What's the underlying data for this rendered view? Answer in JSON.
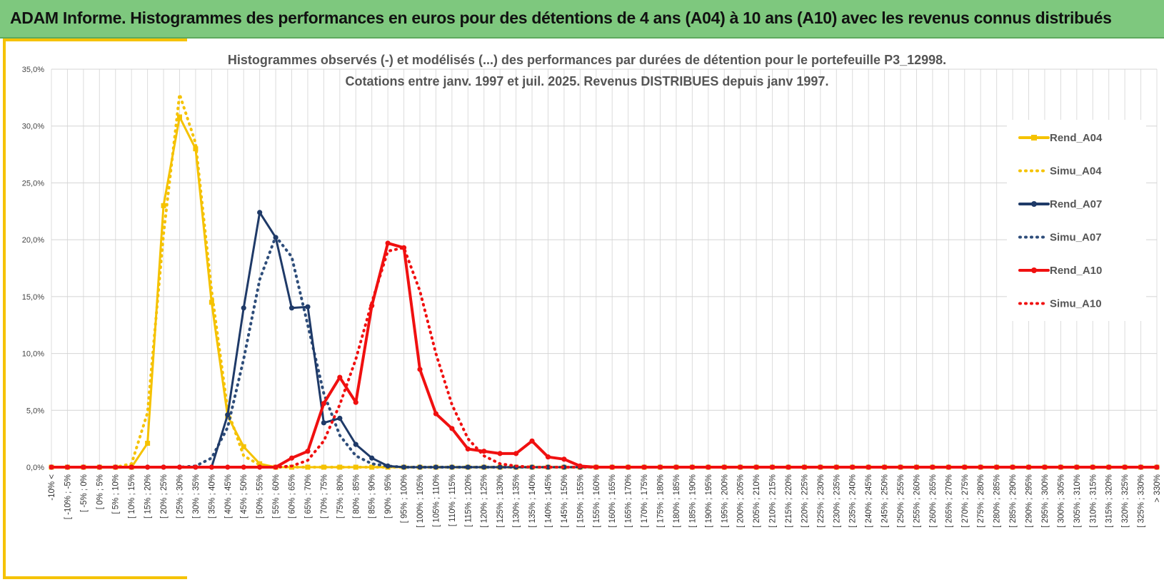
{
  "banner": {
    "title": "ADAM Informe. Histogrammes des performances en euros pour des détentions de 4 ans (A04) à 10 ans (A10) avec les revenus connus distribués"
  },
  "chart_data": {
    "type": "line",
    "title_lines": [
      "Histogrammes observés (-) et modélisés (...) des performances par durées de détention pour le portefeuille P3_12998.",
      "Cotations entre janv. 1997 et juil. 2025. Revenus DISTRIBUES depuis janv 1997."
    ],
    "xlabel": "",
    "ylabel": "",
    "ylim": [
      0,
      35
    ],
    "yticks": [
      "0,0%",
      "5,0%",
      "10,0%",
      "15,0%",
      "20,0%",
      "25,0%",
      "30,0%",
      "35,0%"
    ],
    "grid": true,
    "legend_position": "right",
    "categories": [
      "-10% <",
      "[ -10% ; -5%",
      "[ -5% ; 0%",
      "[ 0% ; 5%",
      "[ 5% ; 10%",
      "[ 10% ; 15%",
      "[ 15% ; 20%",
      "[ 20% ; 25%",
      "[ 25% ; 30%",
      "[ 30% ; 35%",
      "[ 35% ; 40%",
      "[ 40% ; 45%",
      "[ 45% ; 50%",
      "[ 50% ; 55%",
      "[ 55% ; 60%",
      "[ 60% ; 65%",
      "[ 65% ; 70%",
      "[ 70% ; 75%",
      "[ 75% ; 80%",
      "[ 80% ; 85%",
      "[ 85% ; 90%",
      "[ 90% ; 95%",
      "[ 95% ; 100%",
      "[ 100% ; 105%",
      "[ 105% ; 110%",
      "[ 110% ; 115%",
      "[ 115% ; 120%",
      "[ 120% ; 125%",
      "[ 125% ; 130%",
      "[ 130% ; 135%",
      "[ 135% ; 140%",
      "[ 140% ; 145%",
      "[ 145% ; 150%",
      "[ 150% ; 155%",
      "[ 155% ; 160%",
      "[ 160% ; 165%",
      "[ 165% ; 170%",
      "[ 170% ; 175%",
      "[ 175% ; 180%",
      "[ 180% ; 185%",
      "[ 185% ; 190%",
      "[ 190% ; 195%",
      "[ 195% ; 200%",
      "[ 200% ; 205%",
      "[ 205% ; 210%",
      "[ 210% ; 215%",
      "[ 215% ; 220%",
      "[ 220% ; 225%",
      "[ 225% ; 230%",
      "[ 230% ; 235%",
      "[ 235% ; 240%",
      "[ 240% ; 245%",
      "[ 245% ; 250%",
      "[ 250% ; 255%",
      "[ 255% ; 260%",
      "[ 260% ; 265%",
      "[ 265% ; 270%",
      "[ 270% ; 275%",
      "[ 275% ; 280%",
      "[ 280% ; 285%",
      "[ 285% ; 290%",
      "[ 290% ; 295%",
      "[ 295% ; 300%",
      "[ 300% ; 305%",
      "[ 305% ; 310%",
      "[ 310% ; 315%",
      "[ 315% ; 320%",
      "[ 320% ; 325%",
      "[ 325% ; 330%",
      "> 330%"
    ],
    "series": [
      {
        "name": "Rend_A04",
        "color": "#f5c200",
        "style": "solid",
        "marker": "square",
        "values": [
          0,
          0,
          0,
          0,
          0,
          0,
          2.1,
          23.0,
          30.8,
          28.0,
          14.5,
          4.5,
          1.8,
          0.3,
          0,
          0,
          0,
          0,
          0,
          0,
          0,
          0,
          0,
          0,
          0,
          0,
          0,
          0,
          0,
          0,
          0,
          0,
          0,
          0,
          0,
          0,
          0,
          0,
          0,
          0,
          0,
          0,
          0,
          0,
          0,
          0,
          0,
          0,
          0,
          0,
          0,
          0,
          0,
          0,
          0,
          0,
          0,
          0,
          0,
          0,
          0,
          0,
          0,
          0,
          0,
          0,
          0,
          0,
          0,
          0
        ]
      },
      {
        "name": "Simu_A04",
        "color": "#f5c200",
        "style": "dotted",
        "marker": "none",
        "values": [
          0,
          0,
          0,
          0,
          0,
          0.3,
          4.8,
          20.5,
          32.8,
          28.5,
          15.5,
          5.0,
          1.0,
          0.2,
          0,
          0,
          0,
          0,
          0,
          0,
          0,
          0,
          0,
          0,
          0,
          0,
          0,
          0,
          0,
          0,
          0,
          0,
          0,
          0,
          0,
          0,
          0,
          0,
          0,
          0,
          0,
          0,
          0,
          0,
          0,
          0,
          0,
          0,
          0,
          0,
          0,
          0,
          0,
          0,
          0,
          0,
          0,
          0,
          0,
          0,
          0,
          0,
          0,
          0,
          0,
          0,
          0,
          0,
          0,
          0
        ]
      },
      {
        "name": "Rend_A07",
        "color": "#1f3a68",
        "style": "solid",
        "marker": "circle",
        "values": [
          0,
          0,
          0,
          0,
          0,
          0,
          0,
          0,
          0,
          0,
          0,
          4.6,
          14.0,
          22.4,
          20.2,
          14.0,
          14.1,
          3.9,
          4.3,
          2.0,
          0.8,
          0.1,
          0,
          0,
          0,
          0,
          0,
          0,
          0,
          0,
          0,
          0,
          0,
          0,
          0,
          0,
          0,
          0,
          0,
          0,
          0,
          0,
          0,
          0,
          0,
          0,
          0,
          0,
          0,
          0,
          0,
          0,
          0,
          0,
          0,
          0,
          0,
          0,
          0,
          0,
          0,
          0,
          0,
          0,
          0,
          0,
          0,
          0,
          0,
          0
        ]
      },
      {
        "name": "Simu_A07",
        "color": "#2e4d7a",
        "style": "dotted",
        "marker": "none",
        "values": [
          0,
          0,
          0,
          0,
          0,
          0,
          0,
          0,
          0,
          0.1,
          0.8,
          3.5,
          9.5,
          16.5,
          20.3,
          18.5,
          12.5,
          6.5,
          2.8,
          1.0,
          0.3,
          0.1,
          0,
          0,
          0,
          0,
          0,
          0,
          0,
          0,
          0,
          0,
          0,
          0,
          0,
          0,
          0,
          0,
          0,
          0,
          0,
          0,
          0,
          0,
          0,
          0,
          0,
          0,
          0,
          0,
          0,
          0,
          0,
          0,
          0,
          0,
          0,
          0,
          0,
          0,
          0,
          0,
          0,
          0,
          0,
          0,
          0,
          0,
          0,
          0
        ]
      },
      {
        "name": "Rend_A10",
        "color": "#f01010",
        "style": "solid",
        "marker": "circle",
        "values": [
          0,
          0,
          0,
          0,
          0,
          0,
          0,
          0,
          0,
          0,
          0,
          0,
          0,
          0,
          0,
          0.8,
          1.4,
          5.6,
          7.9,
          5.7,
          14.2,
          19.7,
          19.3,
          8.6,
          4.7,
          3.4,
          1.6,
          1.4,
          1.2,
          1.2,
          2.3,
          0.9,
          0.7,
          0.1,
          0,
          0,
          0,
          0,
          0,
          0,
          0,
          0,
          0,
          0,
          0,
          0,
          0,
          0,
          0,
          0,
          0,
          0,
          0,
          0,
          0,
          0,
          0,
          0,
          0,
          0,
          0,
          0,
          0,
          0,
          0,
          0,
          0,
          0,
          0,
          0
        ]
      },
      {
        "name": "Simu_A10",
        "color": "#f01010",
        "style": "dotted",
        "marker": "none",
        "values": [
          0,
          0,
          0,
          0,
          0,
          0,
          0,
          0,
          0,
          0,
          0,
          0,
          0,
          0,
          0,
          0.1,
          0.6,
          2.3,
          5.5,
          9.5,
          14.5,
          19.0,
          19.3,
          15.5,
          10.0,
          5.5,
          2.5,
          1.0,
          0.3,
          0.1,
          0,
          0,
          0,
          0,
          0,
          0,
          0,
          0,
          0,
          0,
          0,
          0,
          0,
          0,
          0,
          0,
          0,
          0,
          0,
          0,
          0,
          0,
          0,
          0,
          0,
          0,
          0,
          0,
          0,
          0,
          0,
          0,
          0,
          0,
          0,
          0,
          0,
          0,
          0,
          0
        ]
      }
    ]
  }
}
